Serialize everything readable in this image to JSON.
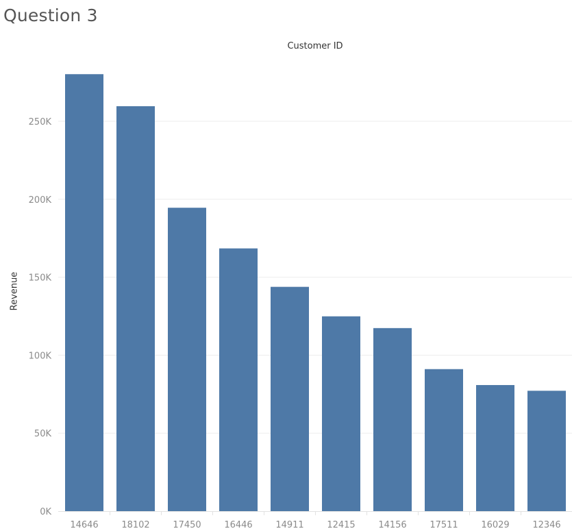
{
  "sheet_title": "Question 3",
  "colors": {
    "bar": "#4e79a7",
    "gridline": "#ededed",
    "axis_line": "#e2e2e2",
    "tick_label": "#8a8a8a"
  },
  "chart_data": {
    "type": "bar",
    "title": "",
    "xlabel": "Customer ID",
    "ylabel": "Revenue",
    "categories": [
      "14646",
      "18102",
      "17450",
      "16446",
      "14911",
      "12415",
      "14156",
      "17511",
      "16029",
      "12346"
    ],
    "values": [
      280206,
      259657,
      194550,
      168472,
      143825,
      124914,
      117379,
      91062,
      80851,
      77183
    ],
    "ylim": [
      0,
      290000
    ],
    "yticks": [
      0,
      50000,
      100000,
      150000,
      200000,
      250000
    ],
    "ytick_labels": [
      "0K",
      "50K",
      "100K",
      "150K",
      "200K",
      "250K"
    ],
    "grid": true,
    "legend": "none"
  }
}
